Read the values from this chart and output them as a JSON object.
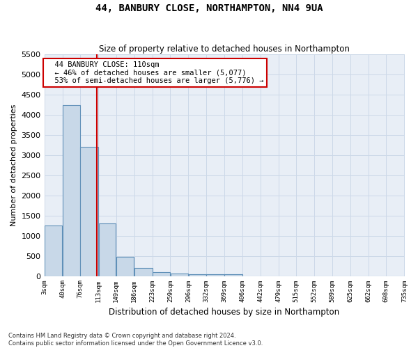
{
  "title": "44, BANBURY CLOSE, NORTHAMPTON, NN4 9UA",
  "subtitle": "Size of property relative to detached houses in Northampton",
  "xlabel": "Distribution of detached houses by size in Northampton",
  "ylabel": "Number of detached properties",
  "footer_line1": "Contains HM Land Registry data © Crown copyright and database right 2024.",
  "footer_line2": "Contains public sector information licensed under the Open Government Licence v3.0.",
  "annotation_line1": "  44 BANBURY CLOSE: 110sqm",
  "annotation_line2": "  ← 46% of detached houses are smaller (5,077)",
  "annotation_line3": "  53% of semi-detached houses are larger (5,776) →",
  "property_size_sqm": 110,
  "bin_edges": [
    3,
    40,
    76,
    113,
    149,
    186,
    223,
    259,
    296,
    332,
    369,
    406,
    442,
    479,
    515,
    552,
    589,
    625,
    662,
    698,
    735
  ],
  "bar_heights": [
    1250,
    4250,
    3200,
    1300,
    480,
    200,
    90,
    60,
    50,
    50,
    50,
    0,
    0,
    0,
    0,
    0,
    0,
    0,
    0,
    0
  ],
  "bar_color": "#c8d8e8",
  "bar_edge_color": "#6090b8",
  "vline_color": "#cc0000",
  "annotation_box_edge_color": "#cc0000",
  "annotation_box_fill": "#ffffff",
  "grid_color": "#ccd8e8",
  "background_color": "#e8eef6",
  "ylim": [
    0,
    5500
  ],
  "yticks": [
    0,
    500,
    1000,
    1500,
    2000,
    2500,
    3000,
    3500,
    4000,
    4500,
    5000,
    5500
  ],
  "xtick_labels": [
    "3sqm",
    "40sqm",
    "76sqm",
    "113sqm",
    "149sqm",
    "186sqm",
    "223sqm",
    "259sqm",
    "296sqm",
    "332sqm",
    "369sqm",
    "406sqm",
    "442sqm",
    "479sqm",
    "515sqm",
    "552sqm",
    "589sqm",
    "625sqm",
    "662sqm",
    "698sqm",
    "735sqm"
  ],
  "figsize": [
    6.0,
    5.0
  ],
  "dpi": 100
}
